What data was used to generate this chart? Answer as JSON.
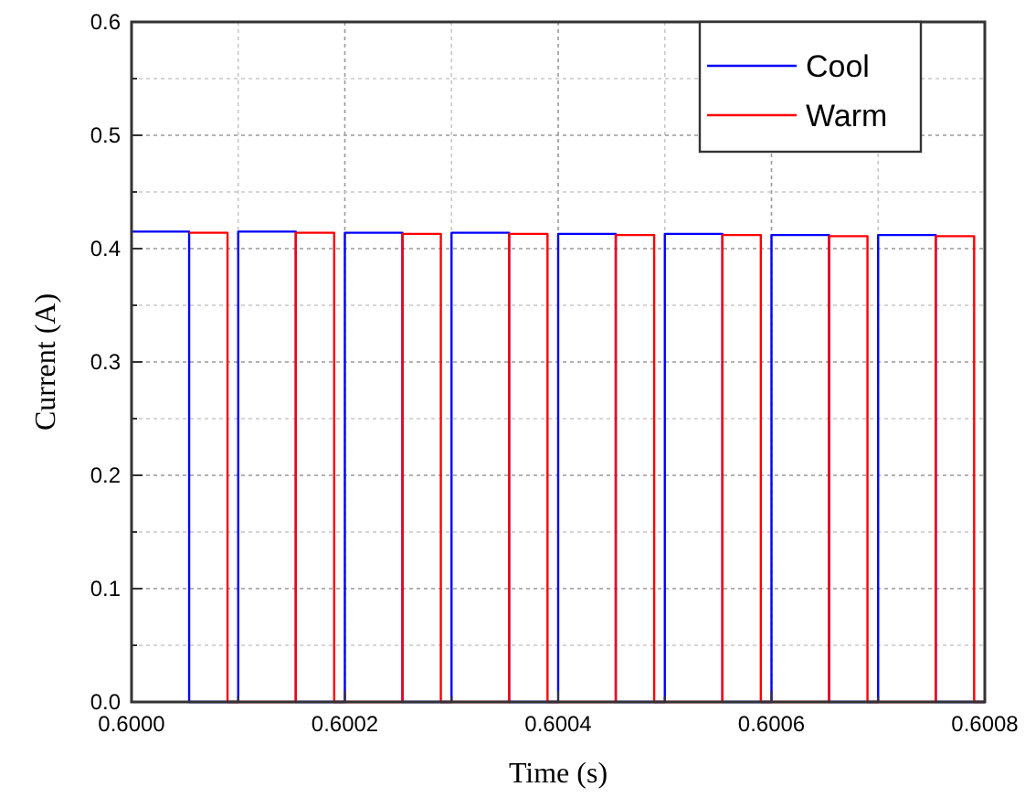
{
  "chart_data": {
    "type": "step",
    "xlabel": "Time (s)",
    "ylabel": "Current (A)",
    "xlim": [
      0.6,
      0.6008
    ],
    "ylim": [
      0,
      0.6
    ],
    "xticks": [
      {
        "value": 0.6,
        "label": "0.6000"
      },
      {
        "value": 0.6001,
        "label": null
      },
      {
        "value": 0.6002,
        "label": "0.6002"
      },
      {
        "value": 0.6003,
        "label": null
      },
      {
        "value": 0.6004,
        "label": "0.6004"
      },
      {
        "value": 0.6005,
        "label": null
      },
      {
        "value": 0.6006,
        "label": "0.6006"
      },
      {
        "value": 0.6007,
        "label": null
      },
      {
        "value": 0.6008,
        "label": "0.6008"
      }
    ],
    "yticks": [
      {
        "value": 0,
        "label": "0.0"
      },
      {
        "value": 0.05,
        "label": null
      },
      {
        "value": 0.1,
        "label": "0.1"
      },
      {
        "value": 0.15,
        "label": null
      },
      {
        "value": 0.2,
        "label": "0.2"
      },
      {
        "value": 0.25,
        "label": null
      },
      {
        "value": 0.3,
        "label": "0.3"
      },
      {
        "value": 0.35,
        "label": null
      },
      {
        "value": 0.4,
        "label": "0.4"
      },
      {
        "value": 0.45,
        "label": null
      },
      {
        "value": 0.5,
        "label": "0.5"
      },
      {
        "value": 0.55,
        "label": null
      },
      {
        "value": 0.6,
        "label": "0.6"
      }
    ],
    "grid": true,
    "legend": "top right",
    "series": [
      {
        "name": "Cool",
        "color": "#0000ff",
        "x": [
          0.6,
          0.600054,
          0.6001,
          0.600154,
          0.6002,
          0.600254,
          0.6003,
          0.600354,
          0.6004,
          0.600454,
          0.6005,
          0.600554,
          0.6006,
          0.600654,
          0.6007,
          0.600754,
          0.6008
        ],
        "values": [
          0.415,
          0,
          0.415,
          0,
          0.414,
          0,
          0.414,
          0,
          0.413,
          0,
          0.413,
          0,
          0.412,
          0,
          0.412,
          0,
          0
        ]
      },
      {
        "name": "Warm",
        "color": "#ff0000",
        "x": [
          0.600054,
          0.60009,
          0.600154,
          0.60019,
          0.600254,
          0.60029,
          0.600354,
          0.60039,
          0.600454,
          0.60049,
          0.600554,
          0.60059,
          0.600654,
          0.60069,
          0.600754,
          0.60079,
          0.6008
        ],
        "values": [
          0.414,
          0,
          0.414,
          0,
          0.413,
          0,
          0.413,
          0,
          0.412,
          0,
          0.412,
          0,
          0.411,
          0,
          0.411,
          0,
          0
        ]
      }
    ]
  }
}
